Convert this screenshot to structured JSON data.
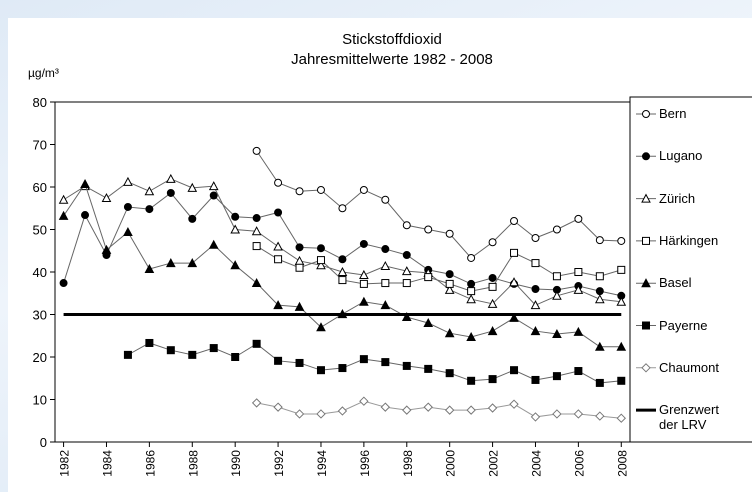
{
  "chart_data": {
    "type": "line",
    "title": "Stickstoffdioxid",
    "subtitle": "Jahresmittelwerte 1982 - 2008",
    "y_label": "µg/m³",
    "x": [
      1982,
      1983,
      1984,
      1985,
      1986,
      1987,
      1988,
      1989,
      1990,
      1991,
      1992,
      1993,
      1994,
      1995,
      1996,
      1997,
      1998,
      1999,
      2000,
      2001,
      2002,
      2003,
      2004,
      2005,
      2006,
      2007,
      2008
    ],
    "xlim": [
      1981.6,
      2008.5
    ],
    "xticks": [
      1982,
      1984,
      1986,
      1988,
      1990,
      1992,
      1994,
      1996,
      1998,
      2000,
      2002,
      2004,
      2006,
      2008
    ],
    "ylim": [
      0,
      80
    ],
    "yticks": [
      0,
      10,
      20,
      30,
      40,
      50,
      60,
      70,
      80
    ],
    "series": [
      {
        "name": "Bern",
        "color": "#666666",
        "marker": "circle-open",
        "values": [
          null,
          null,
          null,
          null,
          null,
          null,
          null,
          null,
          null,
          68.5,
          61,
          59,
          59.3,
          55,
          59.3,
          57,
          51,
          50,
          49,
          43.3,
          47,
          52,
          48,
          50,
          52.5,
          47.5,
          47.3
        ]
      },
      {
        "name": "Lugano",
        "color": "#666666",
        "marker": "circle-filled",
        "values": [
          37.4,
          53.4,
          44,
          55.3,
          54.8,
          58.6,
          52.5,
          58,
          53,
          52.7,
          54,
          45.8,
          45.6,
          43,
          46.6,
          45.4,
          44,
          40.5,
          39.5,
          37.2,
          38.6,
          37.2,
          36,
          35.8,
          36.7,
          35.5,
          34.4
        ]
      },
      {
        "name": "Zürich",
        "color": "#666666",
        "marker": "triangle-open",
        "values": [
          57,
          60.2,
          57.4,
          61.2,
          59,
          61.9,
          59.8,
          60.2,
          50,
          49.6,
          46,
          42.6,
          41.6,
          40,
          39.3,
          41.4,
          40.2,
          39.8,
          35.8,
          33.6,
          32.5,
          37.6,
          32.2,
          34.4,
          35.8,
          33.6,
          33
        ]
      },
      {
        "name": "Härkingen",
        "color": "#666666",
        "marker": "square-open",
        "values": [
          null,
          null,
          null,
          null,
          null,
          null,
          null,
          null,
          null,
          46.1,
          43,
          41,
          42.8,
          38.1,
          37.2,
          37.4,
          37.4,
          38.8,
          37.2,
          35.5,
          36.5,
          44.5,
          42.1,
          39,
          40,
          39,
          40.5
        ]
      },
      {
        "name": "Basel",
        "color": "#666666",
        "marker": "triangle-filled",
        "values": [
          53.2,
          60.7,
          45.2,
          49.4,
          40.7,
          42.1,
          42.1,
          46.4,
          41.6,
          37.4,
          32.2,
          31.8,
          27,
          30.1,
          33,
          32.2,
          29.4,
          28,
          25.6,
          24.7,
          26.1,
          29.2,
          26.1,
          25.4,
          25.9,
          22.4,
          22.4
        ]
      },
      {
        "name": "Payerne",
        "color": "#666666",
        "marker": "square-filled",
        "values": [
          null,
          null,
          null,
          20.5,
          23.3,
          21.6,
          20.5,
          22.1,
          20,
          23.1,
          19.1,
          18.6,
          16.9,
          17.4,
          19.5,
          18.8,
          17.9,
          17.2,
          16.2,
          14.4,
          14.8,
          16.9,
          14.6,
          15.5,
          16.7,
          13.9,
          14.4
        ]
      },
      {
        "name": "Chaumont",
        "color": "#999999",
        "marker": "diamond-open",
        "values": [
          null,
          null,
          null,
          null,
          null,
          null,
          null,
          null,
          null,
          9.2,
          8.2,
          6.6,
          6.6,
          7.3,
          9.6,
          8.2,
          7.5,
          8.2,
          7.5,
          7.5,
          8,
          8.9,
          5.9,
          6.6,
          6.6,
          6.1,
          5.6
        ]
      },
      {
        "name": "Grenzwert der LRV",
        "color": "#000000",
        "marker": "none",
        "values": [
          30,
          30,
          30,
          30,
          30,
          30,
          30,
          30,
          30,
          30,
          30,
          30,
          30,
          30,
          30,
          30,
          30,
          30,
          30,
          30,
          30,
          30,
          30,
          30,
          30,
          30,
          30
        ]
      }
    ]
  }
}
